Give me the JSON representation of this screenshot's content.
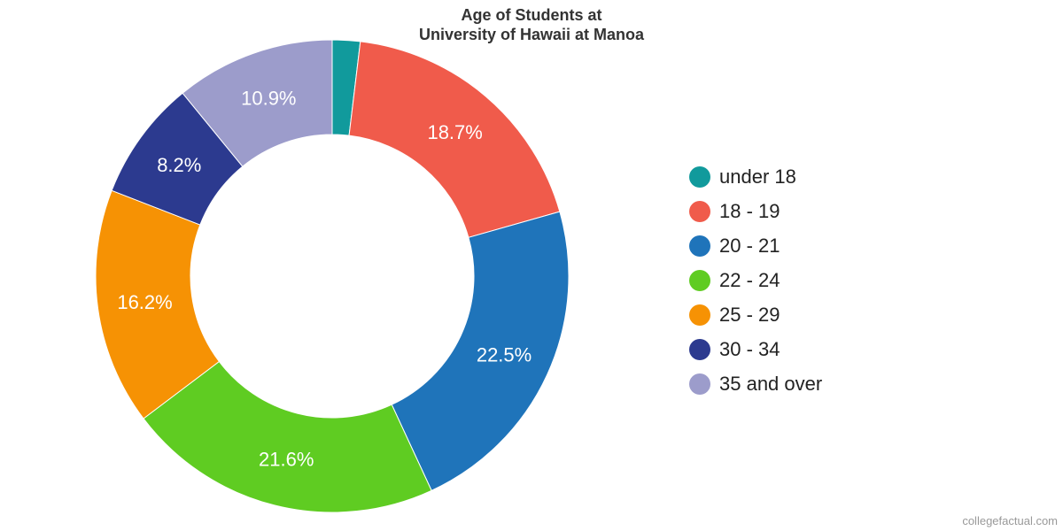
{
  "chart_data": {
    "type": "pie",
    "title": "Age of Students at",
    "subtitle": "University of Hawaii at Manoa",
    "donut": true,
    "legend_position": "right",
    "categories": [
      "under 18",
      "18 - 19",
      "20 - 21",
      "22 - 24",
      "25 - 29",
      "30 - 34",
      "35 and over"
    ],
    "values": [
      1.9,
      18.7,
      22.5,
      21.6,
      16.2,
      8.2,
      10.9
    ],
    "data_labels": [
      "",
      "18.7%",
      "22.5%",
      "21.6%",
      "16.2%",
      "8.2%",
      "10.9%"
    ],
    "colors": [
      "#119a9c",
      "#f05b4b",
      "#1f74ba",
      "#5fcc22",
      "#f69204",
      "#2c3a8f",
      "#9c9ccb"
    ]
  },
  "credit": "collegefactual.com"
}
